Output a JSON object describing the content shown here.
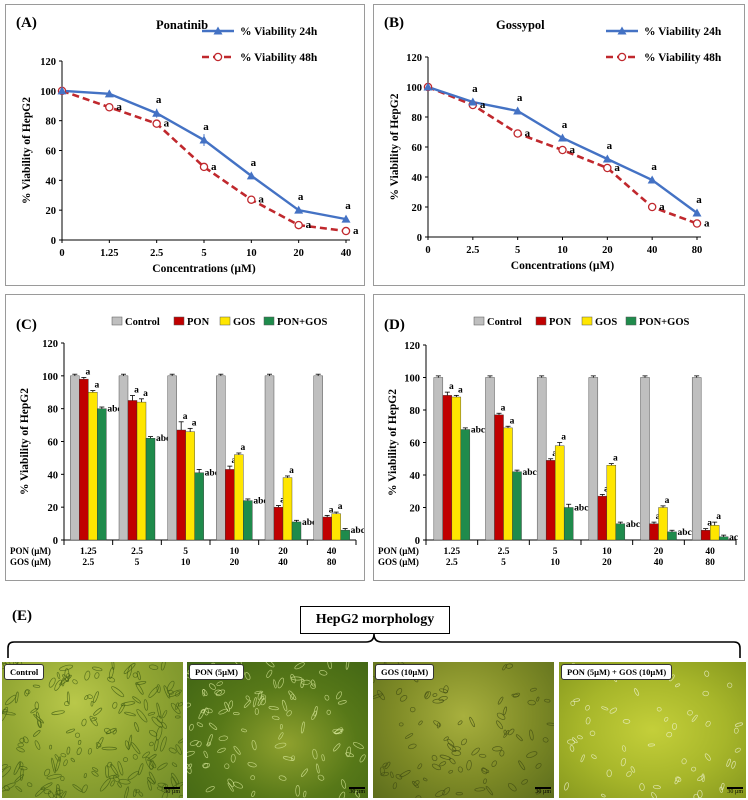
{
  "colors": {
    "blue": "#4472C4",
    "red": "#C0282D",
    "control": "#BFBFBF",
    "pon": "#C00000",
    "gos": "#FFE600",
    "combo": "#1F8B4C"
  },
  "chart_data": [
    {
      "id": "A",
      "panel_label": "(A)",
      "type": "line",
      "title": "Ponatinib",
      "xlabel": "Concentrations (µM)",
      "ylabel": "% Viability of HepG2",
      "categories": [
        "0",
        "1.25",
        "2.5",
        "5",
        "10",
        "20",
        "40"
      ],
      "ylim": [
        0,
        120
      ],
      "yticks": [
        "0",
        "20",
        "40",
        "60",
        "80",
        "100",
        "120"
      ],
      "legend_position": "top-right",
      "series": [
        {
          "name": "% Viability 24h",
          "values": [
            100,
            98,
            85,
            67,
            43,
            20,
            14
          ],
          "errors": [
            0,
            1,
            3,
            4,
            2,
            1,
            1
          ],
          "labels": [
            "",
            "",
            "a",
            "a",
            "a",
            "a",
            "a"
          ]
        },
        {
          "name": "% Viability 48h",
          "values": [
            100,
            89,
            78,
            49,
            27,
            10,
            6
          ],
          "errors": [
            0,
            1,
            1,
            2,
            1,
            1,
            1
          ],
          "labels": [
            "",
            "a",
            "a",
            "a",
            "a",
            "a",
            "a"
          ]
        }
      ]
    },
    {
      "id": "B",
      "panel_label": "(B)",
      "type": "line",
      "title": "Gossypol",
      "xlabel": "Concentrations (µM)",
      "ylabel": "% Viability of HepG2",
      "categories": [
        "0",
        "2.5",
        "5",
        "10",
        "20",
        "40",
        "80"
      ],
      "ylim": [
        0,
        120
      ],
      "yticks": [
        "0",
        "20",
        "40",
        "60",
        "80",
        "100",
        "120"
      ],
      "legend_position": "top-right",
      "series": [
        {
          "name": "% Viability 24h",
          "values": [
            100,
            90,
            84,
            66,
            52,
            38,
            16
          ],
          "errors": [
            0,
            1,
            1,
            2,
            1,
            1,
            1
          ],
          "labels": [
            "",
            "a",
            "a",
            "a",
            "a",
            "a",
            "a"
          ]
        },
        {
          "name": "% Viability 48h",
          "values": [
            100,
            88,
            69,
            58,
            46,
            20,
            9
          ],
          "errors": [
            0,
            1,
            1,
            1,
            1,
            1,
            1
          ],
          "labels": [
            "",
            "a",
            "a",
            "a",
            "a",
            "a",
            "a"
          ]
        }
      ]
    },
    {
      "id": "C",
      "panel_label": "(C)",
      "type": "bar",
      "ylabel": "% Viability of HepG2",
      "ylim": [
        0,
        120
      ],
      "yticks": [
        "0",
        "20",
        "40",
        "60",
        "80",
        "100",
        "120"
      ],
      "legend_position": "top",
      "row_labels": [
        "PON (µM)",
        "GOS (µM)"
      ],
      "pon_doses": [
        "1.25",
        "2.5",
        "5",
        "10",
        "20",
        "40"
      ],
      "gos_doses": [
        "2.5",
        "5",
        "10",
        "20",
        "40",
        "80"
      ],
      "series": [
        {
          "name": "Control",
          "values": [
            100,
            100,
            100,
            100,
            100,
            100
          ],
          "errors": [
            1,
            1,
            1,
            1,
            1,
            1
          ],
          "labels": [
            "",
            "",
            "",
            "",
            "",
            ""
          ]
        },
        {
          "name": "PON",
          "values": [
            98,
            85,
            67,
            43,
            20,
            14
          ],
          "errors": [
            1,
            3,
            5,
            2,
            1,
            1
          ],
          "labels": [
            "a",
            "a",
            "a",
            "a",
            "a",
            "a"
          ]
        },
        {
          "name": "GOS",
          "values": [
            90,
            84,
            66,
            52,
            38,
            16
          ],
          "errors": [
            1,
            2,
            2,
            1,
            1,
            1
          ],
          "labels": [
            "a",
            "a",
            "a",
            "a",
            "a",
            "a"
          ]
        },
        {
          "name": "PON+GOS",
          "values": [
            80,
            62,
            41,
            24,
            11,
            6
          ],
          "errors": [
            1,
            1,
            2,
            1,
            1,
            1
          ],
          "labels": [
            "abc",
            "abc",
            "abc",
            "abc",
            "abc",
            "abc"
          ]
        }
      ]
    },
    {
      "id": "D",
      "panel_label": "(D)",
      "type": "bar",
      "ylabel": "% Viability of HepG2",
      "ylim": [
        0,
        120
      ],
      "yticks": [
        "0",
        "20",
        "40",
        "60",
        "80",
        "100",
        "120"
      ],
      "legend_position": "top",
      "row_labels": [
        "PON (µM)",
        "GOS (µM)"
      ],
      "pon_doses": [
        "1.25",
        "2.5",
        "5",
        "10",
        "20",
        "40"
      ],
      "gos_doses": [
        "2.5",
        "5",
        "10",
        "20",
        "40",
        "80"
      ],
      "series": [
        {
          "name": "Control",
          "values": [
            100,
            100,
            100,
            100,
            100,
            100
          ],
          "errors": [
            1,
            1,
            1,
            1,
            1,
            1
          ],
          "labels": [
            "",
            "",
            "",
            "",
            "",
            ""
          ]
        },
        {
          "name": "PON",
          "values": [
            89,
            77,
            49,
            27,
            10,
            6
          ],
          "errors": [
            2,
            1,
            1,
            1,
            1,
            1
          ],
          "labels": [
            "a",
            "a",
            "a",
            "a",
            "a",
            "a"
          ]
        },
        {
          "name": "GOS",
          "values": [
            88,
            69,
            58,
            46,
            20,
            9
          ],
          "errors": [
            1,
            1,
            2,
            1,
            1,
            2
          ],
          "labels": [
            "a",
            "a",
            "a",
            "a",
            "a",
            "a"
          ]
        },
        {
          "name": "PON+GOS",
          "values": [
            68,
            42,
            20,
            10,
            5,
            2
          ],
          "errors": [
            1,
            1,
            2,
            1,
            1,
            1
          ],
          "labels": [
            "abc",
            "abc",
            "abc",
            "abc",
            "abc",
            "ac"
          ]
        }
      ]
    }
  ],
  "morphology": {
    "panel_label": "(E)",
    "title": "HepG2 morphology",
    "scale_bar": "30 µm",
    "images": [
      {
        "label": "Control"
      },
      {
        "label": "PON (5µM)"
      },
      {
        "label": "GOS (10µM)"
      },
      {
        "label": "PON (5µM) + GOS (10µM)"
      }
    ]
  }
}
